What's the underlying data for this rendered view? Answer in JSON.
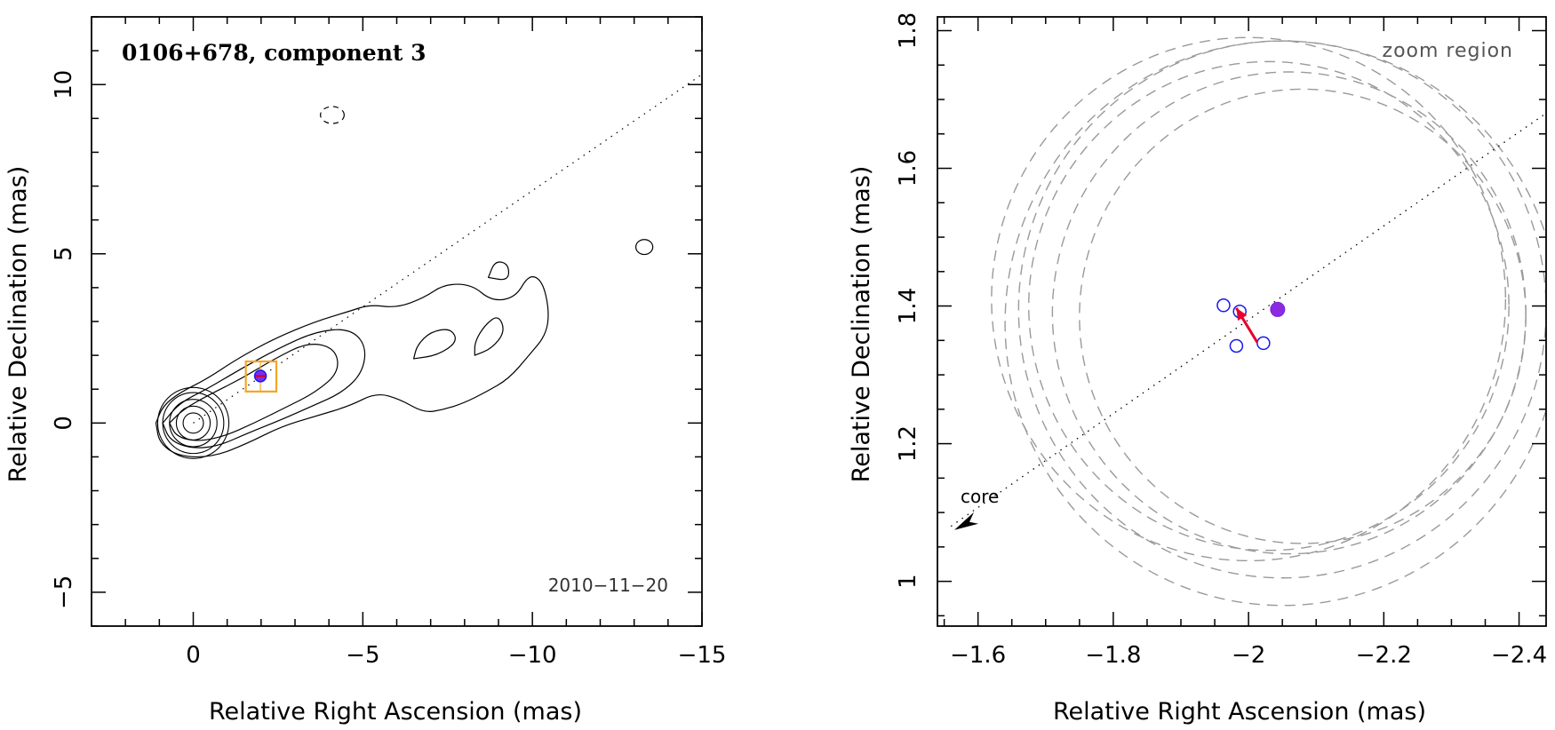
{
  "chart_data": [
    {
      "type": "contour-map",
      "title": "0106+678, component 3",
      "date": "2010−11−20",
      "xlabel": "Relative Right Ascension (mas)",
      "ylabel": "Relative Declination (mas)",
      "xlim": [
        3,
        -15
      ],
      "ylim": [
        -6,
        12
      ],
      "xticks": [
        0,
        -5,
        -10,
        -15
      ],
      "xtick_labels": [
        "0",
        "−5",
        "−10",
        "−15"
      ],
      "yticks": [
        -5,
        0,
        5,
        10
      ],
      "ytick_labels": [
        "−5",
        "0",
        "5",
        "10"
      ],
      "jet_axis": {
        "from": [
          0,
          0
        ],
        "to": [
          -15,
          10.3
        ]
      },
      "core_contours": [
        {
          "rx": 0.3,
          "ry": 0.3
        },
        {
          "rx": 0.5,
          "ry": 0.5
        },
        {
          "rx": 0.7,
          "ry": 0.7
        },
        {
          "rx": 0.9,
          "ry": 0.9
        },
        {
          "rx": 1.05,
          "ry": 1.05
        }
      ],
      "jet_contours": [
        [
          [
            1.1,
            0
          ],
          [
            1.0,
            -0.6
          ],
          [
            0.4,
            -1.0
          ],
          [
            -0.6,
            -1.0
          ],
          [
            -1.6,
            -0.6
          ],
          [
            -2.6,
            -0.1
          ],
          [
            -3.6,
            0.2
          ],
          [
            -4.6,
            0.5
          ],
          [
            -5.4,
            0.9
          ],
          [
            -6.1,
            0.7
          ],
          [
            -6.8,
            0.3
          ],
          [
            -7.4,
            0.4
          ],
          [
            -8.0,
            0.6
          ],
          [
            -8.6,
            0.9
          ],
          [
            -9.3,
            1.3
          ],
          [
            -9.9,
            2.0
          ],
          [
            -10.4,
            2.6
          ],
          [
            -10.5,
            3.3
          ],
          [
            -10.3,
            4.2
          ],
          [
            -9.9,
            4.4
          ],
          [
            -9.5,
            3.7
          ],
          [
            -8.8,
            3.6
          ],
          [
            -8.2,
            4.1
          ],
          [
            -7.4,
            4.1
          ],
          [
            -6.8,
            3.7
          ],
          [
            -6.0,
            3.4
          ],
          [
            -5.2,
            3.5
          ],
          [
            -4.6,
            3.3
          ],
          [
            -3.6,
            3.0
          ],
          [
            -2.4,
            2.5
          ],
          [
            -1.3,
            1.9
          ],
          [
            -0.4,
            1.3
          ],
          [
            0.4,
            0.9
          ],
          [
            0.9,
            0.5
          ],
          [
            1.1,
            0
          ]
        ],
        [
          [
            0.9,
            0
          ],
          [
            0.7,
            -0.5
          ],
          [
            0.1,
            -0.75
          ],
          [
            -0.7,
            -0.7
          ],
          [
            -1.6,
            -0.3
          ],
          [
            -2.6,
            0.1
          ],
          [
            -3.5,
            0.5
          ],
          [
            -4.4,
            0.9
          ],
          [
            -5.0,
            1.5
          ],
          [
            -5.1,
            2.3
          ],
          [
            -4.6,
            2.8
          ],
          [
            -3.6,
            2.7
          ],
          [
            -2.5,
            2.2
          ],
          [
            -1.4,
            1.6
          ],
          [
            -0.4,
            1.0
          ],
          [
            0.4,
            0.6
          ],
          [
            0.9,
            0
          ]
        ],
        [
          [
            0.7,
            0
          ],
          [
            0.5,
            -0.4
          ],
          [
            -0.1,
            -0.55
          ],
          [
            -0.9,
            -0.4
          ],
          [
            -1.8,
            0.0
          ],
          [
            -2.7,
            0.45
          ],
          [
            -3.6,
            0.9
          ],
          [
            -4.3,
            1.5
          ],
          [
            -4.2,
            2.2
          ],
          [
            -3.4,
            2.4
          ],
          [
            -2.4,
            1.9
          ],
          [
            -1.4,
            1.3
          ],
          [
            -0.4,
            0.8
          ],
          [
            0.3,
            0.4
          ],
          [
            0.7,
            0
          ]
        ],
        [
          [
            -8.3,
            2.0
          ],
          [
            -8.8,
            2.2
          ],
          [
            -9.2,
            2.7
          ],
          [
            -9.0,
            3.2
          ],
          [
            -8.6,
            2.9
          ],
          [
            -8.3,
            2.4
          ],
          [
            -8.3,
            2.0
          ]
        ],
        [
          [
            -6.5,
            1.9
          ],
          [
            -7.2,
            2.0
          ],
          [
            -7.8,
            2.4
          ],
          [
            -7.6,
            2.8
          ],
          [
            -7.0,
            2.7
          ],
          [
            -6.6,
            2.3
          ],
          [
            -6.5,
            1.9
          ]
        ],
        [
          [
            -8.7,
            4.3
          ],
          [
            -9.3,
            4.2
          ],
          [
            -9.3,
            4.7
          ],
          [
            -8.9,
            4.8
          ],
          [
            -8.7,
            4.3
          ]
        ]
      ],
      "isolated_contours": [
        {
          "x": -13.3,
          "y": 5.2,
          "rx": 0.25,
          "ry": 0.22
        },
        {
          "x": -4.1,
          "y": 9.1,
          "rx": 0.35,
          "ry": 0.25,
          "dashed": true
        }
      ],
      "component": {
        "x": -1.98,
        "y": 1.39
      },
      "zoom_box": {
        "x0": -1.55,
        "x1": -2.45,
        "y0": 0.93,
        "y1": 1.82
      }
    },
    {
      "type": "scatter",
      "label": "zoom region",
      "core_label": "core",
      "xlabel": "Relative Right Ascension (mas)",
      "ylabel": "Relative Declination (mas)",
      "xlim": [
        -1.54,
        -2.44
      ],
      "ylim": [
        0.935,
        1.82
      ],
      "xticks": [
        -1.6,
        -1.8,
        -2.0,
        -2.2,
        -2.4
      ],
      "xtick_labels": [
        "−1.6",
        "−1.8",
        "−2",
        "−2.2",
        "−2.4"
      ],
      "yticks": [
        1.0,
        1.2,
        1.4,
        1.6,
        1.8
      ],
      "ytick_labels": [
        "1",
        "1.2",
        "1.4",
        "1.6",
        "1.8"
      ],
      "open_points": [
        {
          "x": -1.963,
          "y": 1.401
        },
        {
          "x": -1.982,
          "y": 1.342
        },
        {
          "x": -2.022,
          "y": 1.346
        },
        {
          "x": -1.987,
          "y": 1.392
        }
      ],
      "filled_point": {
        "x": -2.043,
        "y": 1.395
      },
      "arrow": {
        "from": [
          -2.013,
          1.347
        ],
        "to": [
          -1.982,
          1.397
        ]
      },
      "circles": [
        {
          "x": -2.05,
          "y": 1.395,
          "r": 0.39
        },
        {
          "x": -2.03,
          "y": 1.4,
          "r": 0.355
        },
        {
          "x": -2.06,
          "y": 1.39,
          "r": 0.35
        },
        {
          "x": -2.0,
          "y": 1.41,
          "r": 0.38
        },
        {
          "x": -2.08,
          "y": 1.385,
          "r": 0.33
        },
        {
          "x": -2.05,
          "y": 1.375,
          "r": 0.41
        }
      ],
      "jet_axis": {
        "from": [
          -1.56,
          1.08
        ],
        "to": [
          -2.44,
          1.68
        ]
      }
    }
  ]
}
